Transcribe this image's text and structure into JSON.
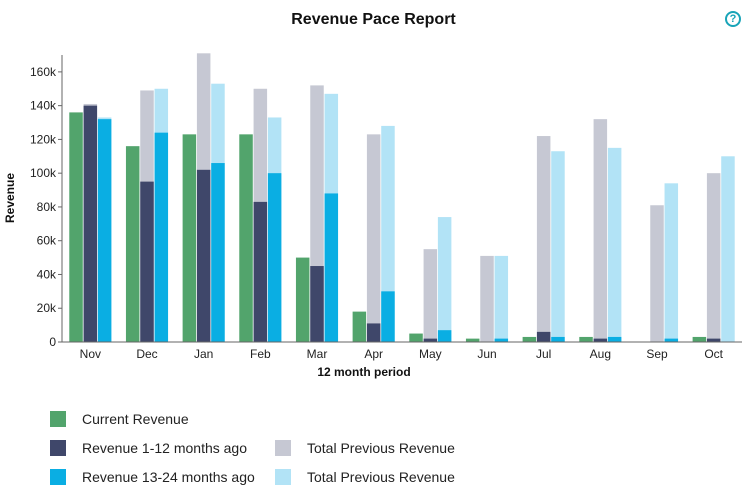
{
  "title": "Revenue Pace Report",
  "help_icon": "?",
  "chart_data": {
    "type": "bar",
    "title": "Revenue Pace Report",
    "xlabel": "12 month period",
    "ylabel": "Revenue",
    "ylim": [
      0,
      170000
    ],
    "y_ticks": [
      0,
      20000,
      40000,
      60000,
      80000,
      100000,
      120000,
      140000,
      160000
    ],
    "y_tick_labels": [
      "0",
      "20k",
      "40k",
      "60k",
      "80k",
      "100k",
      "120k",
      "140k",
      "160k"
    ],
    "categories": [
      "Nov",
      "Dec",
      "Jan",
      "Feb",
      "Mar",
      "Apr",
      "May",
      "Jun",
      "Jul",
      "Aug",
      "Sep",
      "Oct"
    ],
    "grid": false,
    "legend_position": "bottom-left",
    "series": [
      {
        "name": "Current Revenue",
        "color": "#52a46c",
        "group": 0,
        "values": [
          136000,
          116000,
          123000,
          123000,
          50000,
          18000,
          5000,
          2000,
          3000,
          3000,
          0,
          3000
        ]
      },
      {
        "name": "Total Previous Revenue",
        "color": "#c6c8d3",
        "group": 1,
        "values": [
          141000,
          149000,
          171000,
          150000,
          152000,
          123000,
          55000,
          51000,
          122000,
          132000,
          81000,
          100000
        ]
      },
      {
        "name": "Revenue 1-12 months ago",
        "color": "#3f476a",
        "group": 1,
        "values": [
          140000,
          95000,
          102000,
          83000,
          45000,
          11000,
          2000,
          0,
          6000,
          2000,
          0,
          2000
        ]
      },
      {
        "name": "Total Previous Revenue",
        "color": "#b2e3f6",
        "group": 2,
        "values": [
          133000,
          150000,
          153000,
          133000,
          147000,
          128000,
          74000,
          51000,
          113000,
          115000,
          94000,
          110000
        ]
      },
      {
        "name": "Revenue 13-24 months ago",
        "color": "#0aaee3",
        "group": 2,
        "values": [
          132000,
          124000,
          106000,
          100000,
          88000,
          30000,
          7000,
          2000,
          3000,
          3000,
          2000,
          0
        ]
      }
    ]
  },
  "legend": [
    {
      "label": "Current Revenue",
      "color": "#52a46c"
    },
    {
      "label": "Revenue 1-12 months ago",
      "color": "#3f476a"
    },
    {
      "label": "Total Previous Revenue",
      "color": "#c6c8d3"
    },
    {
      "label": "Revenue 13-24 months ago",
      "color": "#0aaee3"
    },
    {
      "label": "Total Previous Revenue",
      "color": "#b2e3f6"
    }
  ]
}
